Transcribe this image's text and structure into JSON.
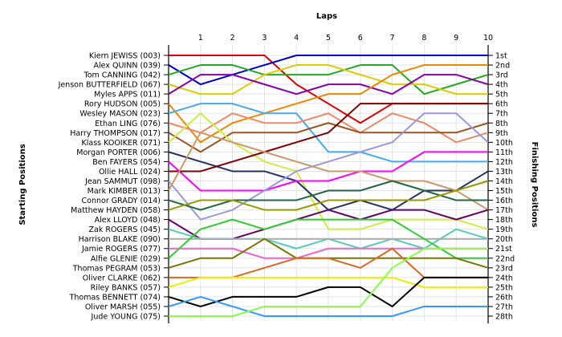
{
  "chart_data": {
    "type": "line",
    "title": "",
    "xlabel": "Laps",
    "ylabel_left": "Starting Positions",
    "ylabel_right": "Finishing Positions",
    "x": [
      0,
      1,
      2,
      3,
      4,
      5,
      6,
      7,
      8,
      9,
      10
    ],
    "x_tick_labels": [
      "1",
      "2",
      "3",
      "4",
      "5",
      "6",
      "7",
      "8",
      "9",
      "10"
    ],
    "position_range": [
      1,
      28
    ],
    "finishing_labels": [
      "1st",
      "2nd",
      "3rd",
      "4th",
      "5th",
      "6th",
      "7th",
      "8th",
      "9th",
      "10th",
      "11th",
      "12th",
      "13th",
      "14th",
      "15th",
      "16th",
      "17th",
      "18th",
      "19th",
      "20th",
      "21st",
      "22nd",
      "23rd",
      "24th",
      "25th",
      "26th",
      "27th",
      "28th"
    ],
    "grid": true,
    "series": [
      {
        "name": "Kiern JEWISS (003)",
        "color": "#dd0000",
        "values": [
          1,
          1,
          1,
          1,
          4,
          6,
          8,
          6,
          6,
          6,
          6
        ]
      },
      {
        "name": "Alex QUINN (039)",
        "color": "#0000cc",
        "values": [
          2,
          4,
          3,
          2,
          1,
          1,
          1,
          1,
          1,
          1,
          1
        ]
      },
      {
        "name": "Tom CANNING (042)",
        "color": "#22aa22",
        "values": [
          3,
          2,
          2,
          3,
          3,
          3,
          2,
          2,
          5,
          4,
          3
        ]
      },
      {
        "name": "Jenson BUTTERFIELD (067)",
        "color": "#ddcc00",
        "values": [
          4,
          5,
          5,
          3,
          2,
          2,
          3,
          4,
          4,
          5,
          5
        ]
      },
      {
        "name": "Myles APPS (011)",
        "color": "#8800aa",
        "values": [
          5,
          3,
          3,
          4,
          5,
          4,
          4,
          5,
          3,
          3,
          4
        ]
      },
      {
        "name": "Rory HUDSON (005)",
        "color": "#ee8800",
        "values": [
          6,
          10,
          8,
          7,
          6,
          5,
          5,
          3,
          2,
          2,
          2
        ]
      },
      {
        "name": "Wesley MASON (023)",
        "color": "#44aaee",
        "values": [
          7,
          6,
          6,
          7,
          7,
          11,
          11,
          12,
          12,
          12,
          12
        ]
      },
      {
        "name": "Ethan LING (076)",
        "color": "#ee8866",
        "values": [
          8,
          9,
          7,
          8,
          8,
          7,
          9,
          7,
          8,
          10,
          9
        ]
      },
      {
        "name": "Harry THOMPSON (017)",
        "color": "#995522",
        "values": [
          9,
          11,
          9,
          9,
          9,
          8,
          9,
          9,
          9,
          9,
          8
        ]
      },
      {
        "name": "Klass KOOIKER (071)",
        "color": "#ccee44",
        "values": [
          10,
          7,
          10,
          12,
          13,
          19,
          19,
          18,
          18,
          18,
          19
        ]
      },
      {
        "name": "Morgan PORTER (006)",
        "color": "#223366",
        "values": [
          11,
          12,
          13,
          13,
          14,
          17,
          16,
          17,
          15,
          15,
          13
        ]
      },
      {
        "name": "Ben FAYERS (054)",
        "color": "#ff00ff",
        "values": [
          12,
          15,
          15,
          15,
          14,
          14,
          13,
          13,
          11,
          11,
          11
        ]
      },
      {
        "name": "Ollie HALL (024)",
        "color": "#800000",
        "values": [
          13,
          13,
          12,
          11,
          10,
          9,
          6,
          6,
          6,
          6,
          6
        ]
      },
      {
        "name": "Jean SAMMUT (098)",
        "color": "#9999dd",
        "values": [
          14,
          18,
          17,
          15,
          13,
          12,
          11,
          10,
          7,
          7,
          10
        ]
      },
      {
        "name": "Mark KIMBER (013)",
        "color": "#cc9966",
        "values": [
          15,
          9,
          10,
          11,
          12,
          13,
          13,
          14,
          14,
          15,
          17
        ]
      },
      {
        "name": "Connor GRADY (014)",
        "color": "#226644",
        "values": [
          16,
          17,
          16,
          16,
          16,
          15,
          15,
          14,
          15,
          16,
          16
        ]
      },
      {
        "name": "Matthew HAYDEN (058)",
        "color": "#999900",
        "values": [
          17,
          16,
          16,
          17,
          17,
          16,
          16,
          16,
          16,
          15,
          14
        ]
      },
      {
        "name": "Alex LLOYD (048)",
        "color": "#660066",
        "values": [
          18,
          20,
          20,
          19,
          18,
          17,
          18,
          17,
          17,
          18,
          17
        ]
      },
      {
        "name": "Zak ROGERS (045)",
        "color": "#55ccbb",
        "values": [
          19,
          20,
          20,
          20,
          21,
          20,
          21,
          20,
          21,
          19,
          20
        ]
      },
      {
        "name": "Harrison BLAKE (090)",
        "color": "#aaaaaa",
        "values": [
          20,
          20,
          20,
          20,
          20,
          20,
          20,
          20,
          20,
          20,
          20
        ]
      },
      {
        "name": "Jamie ROGERS (077)",
        "color": "#ee66cc",
        "values": [
          21,
          21,
          21,
          22,
          22,
          21,
          21,
          21,
          21,
          21,
          21
        ]
      },
      {
        "name": "Alfie GLENIE (029)",
        "color": "#33cc33",
        "values": [
          22,
          19,
          18,
          19,
          18,
          18,
          18,
          18,
          20,
          22,
          22
        ]
      },
      {
        "name": "Thomas PEGRAM (053)",
        "color": "#777700",
        "values": [
          23,
          22,
          22,
          20,
          22,
          22,
          22,
          22,
          22,
          22,
          23
        ]
      },
      {
        "name": "Oliver CLARKE (062)",
        "color": "#dd6622",
        "values": [
          24,
          24,
          24,
          23,
          22,
          22,
          23,
          21,
          24,
          24,
          24
        ]
      },
      {
        "name": "Riley BANKS (057)",
        "color": "#eeee00",
        "values": [
          25,
          24,
          24,
          24,
          24,
          24,
          24,
          24,
          25,
          25,
          25
        ]
      },
      {
        "name": "Thomas BENNETT (074)",
        "color": "#000000",
        "values": [
          26,
          27,
          26,
          26,
          26,
          25,
          25,
          27,
          24,
          24,
          24
        ]
      },
      {
        "name": "Oliver MARSH (055)",
        "color": "#3399ff",
        "values": [
          27,
          26,
          27,
          28,
          28,
          28,
          28,
          28,
          27,
          27,
          27
        ]
      },
      {
        "name": "Jude YOUNG (075)",
        "color": "#88ff44",
        "values": [
          28,
          28,
          28,
          27,
          27,
          27,
          27,
          23,
          21,
          21,
          21
        ]
      }
    ]
  }
}
